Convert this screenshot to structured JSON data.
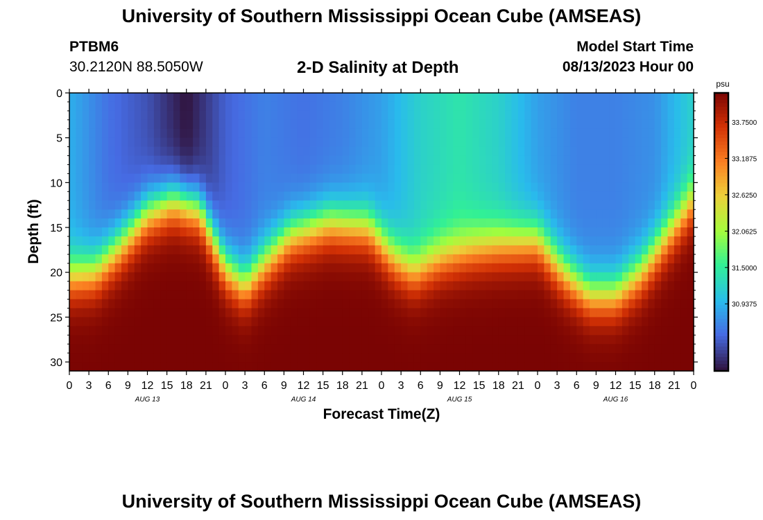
{
  "header": {
    "title": "University of Southern Mississippi Ocean Cube (AMSEAS)",
    "station_id": "PTBM6",
    "coordinates": "30.2120N  88.5050W",
    "subtitle": "2-D Salinity at Depth",
    "model_start_label": "Model Start Time",
    "model_start_value": "08/13/2023 Hour 00"
  },
  "footer": {
    "title": "University of Southern Mississippi Ocean Cube (AMSEAS)"
  },
  "chart_data": {
    "type": "heatmap",
    "title": "2-D Salinity at Depth",
    "xlabel": "Forecast Time(Z)",
    "ylabel": "Depth (ft)",
    "x_hours_range": [
      0,
      96
    ],
    "x_tick_step_hours": 3,
    "x_tick_labels": [
      "0",
      "3",
      "6",
      "9",
      "12",
      "15",
      "18",
      "21",
      "0",
      "3",
      "6",
      "9",
      "12",
      "15",
      "18",
      "21",
      "0",
      "3",
      "6",
      "9",
      "12",
      "15",
      "18",
      "21",
      "0",
      "3",
      "6",
      "9",
      "12",
      "15",
      "18",
      "21",
      "0"
    ],
    "day_labels": [
      {
        "label": "AUG 13",
        "hour": 12
      },
      {
        "label": "AUG 14",
        "hour": 36
      },
      {
        "label": "AUG 15",
        "hour": 60
      },
      {
        "label": "AUG 16",
        "hour": 84
      }
    ],
    "ylim": [
      0,
      31
    ],
    "y_ticks": [
      0,
      5,
      10,
      15,
      20,
      25,
      30
    ],
    "y_tick_labels": [
      "0",
      "5",
      "10",
      "15",
      "20",
      "25",
      "30"
    ],
    "colorbar": {
      "unit": "psu",
      "min": 29.9,
      "max": 34.2,
      "ticks": [
        30.9375,
        31.5,
        32.0625,
        32.625,
        33.1875,
        33.75
      ],
      "tick_labels": [
        "30.9375",
        "31.5000",
        "32.0625",
        "32.6250",
        "33.1875",
        "33.7500"
      ]
    },
    "surface_salinity_psu_by_hour": [
      [
        0,
        30.9
      ],
      [
        6,
        30.5
      ],
      [
        12,
        30.3
      ],
      [
        18,
        29.9
      ],
      [
        24,
        30.4
      ],
      [
        30,
        30.6
      ],
      [
        36,
        30.5
      ],
      [
        42,
        30.6
      ],
      [
        48,
        30.8
      ],
      [
        54,
        31.2
      ],
      [
        60,
        31.4
      ],
      [
        66,
        31.2
      ],
      [
        72,
        30.8
      ],
      [
        78,
        30.6
      ],
      [
        84,
        30.6
      ],
      [
        90,
        30.7
      ],
      [
        96,
        31.2
      ]
    ],
    "halocline_depth_ft_by_hour": [
      [
        0,
        20.5
      ],
      [
        4,
        20
      ],
      [
        8,
        17
      ],
      [
        12,
        13.5
      ],
      [
        16,
        12
      ],
      [
        20,
        13
      ],
      [
        24,
        19.5
      ],
      [
        27,
        21.5
      ],
      [
        30,
        19
      ],
      [
        34,
        16
      ],
      [
        40,
        14.5
      ],
      [
        46,
        15
      ],
      [
        50,
        18.5
      ],
      [
        53,
        20
      ],
      [
        57,
        18.5
      ],
      [
        62,
        17.5
      ],
      [
        66,
        17
      ],
      [
        72,
        16.5
      ],
      [
        76,
        20
      ],
      [
        80,
        22.5
      ],
      [
        84,
        22.5
      ],
      [
        88,
        20
      ],
      [
        92,
        16
      ],
      [
        96,
        12
      ]
    ],
    "bottom_salinity_psu": 34.2
  }
}
